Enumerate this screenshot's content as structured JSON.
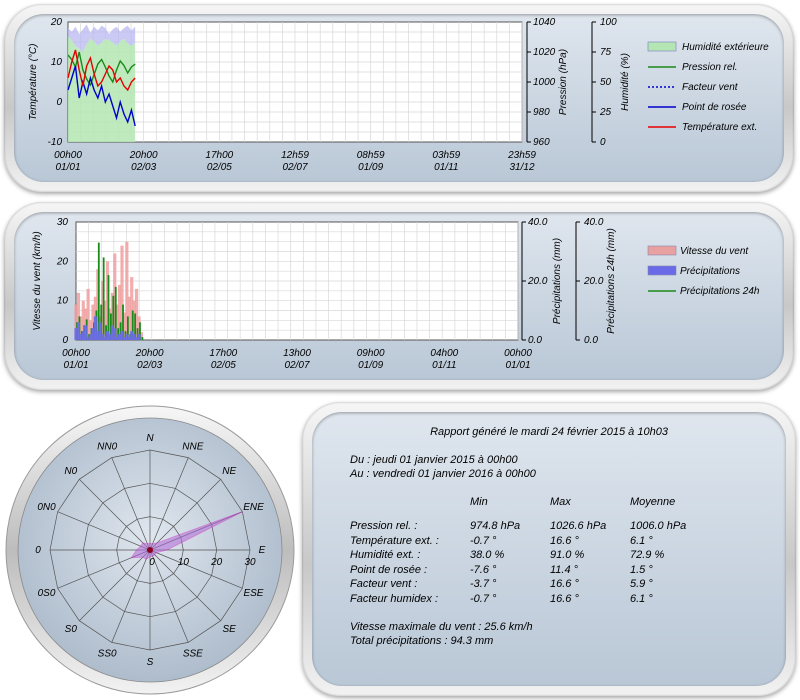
{
  "chart_data": [
    {
      "type": "line",
      "ylabel_left": "Température (°C)",
      "ylim_left": [
        -10,
        20
      ],
      "yticks_left": [
        "20",
        "10",
        "0",
        "-10"
      ],
      "ylabel_mid": "Pression (hPa)",
      "ylim_mid": [
        960,
        1040
      ],
      "yticks_mid": [
        "1040",
        "1020",
        "1000",
        "980",
        "960"
      ],
      "ylabel_right": "Humidité (%)",
      "ylim_right": [
        0,
        100
      ],
      "yticks_right": [
        "100",
        "75",
        "50",
        "25",
        "0"
      ],
      "xticks": [
        {
          "time": "00h00",
          "date": "01/01"
        },
        {
          "time": "20h00",
          "date": "02/03"
        },
        {
          "time": "17h00",
          "date": "02/05"
        },
        {
          "time": "12h59",
          "date": "02/07"
        },
        {
          "time": "08h59",
          "date": "01/09"
        },
        {
          "time": "03h59",
          "date": "01/11"
        },
        {
          "time": "23h59",
          "date": "31/12"
        }
      ],
      "grid": true,
      "legend_position": "right",
      "legend": [
        {
          "name": "Humidité extérieure",
          "style": "area",
          "color": "#b3e6b3"
        },
        {
          "name": "Pression rel.",
          "style": "line",
          "color": "#1a8a1a"
        },
        {
          "name": "Facteur vent",
          "style": "dotted",
          "color": "#0000cc"
        },
        {
          "name": "Point de rosée",
          "style": "line",
          "color": "#0000cc"
        },
        {
          "name": "Température ext.",
          "style": "line",
          "color": "#e60000"
        }
      ],
      "series": [
        {
          "name": "Humidité extérieure",
          "axis": "right",
          "x_days": [
            0,
            3,
            6,
            9,
            12,
            15,
            18,
            21,
            24,
            27,
            30,
            33,
            36,
            39,
            42,
            45,
            48,
            51,
            54
          ],
          "values": [
            88,
            85,
            80,
            78,
            75,
            82,
            86,
            84,
            80,
            83,
            86,
            85,
            83,
            80,
            84,
            86,
            82,
            80,
            83
          ]
        },
        {
          "name": "Humidité extérieure (haut)",
          "axis": "right",
          "x_days": [
            0,
            3,
            6,
            9,
            12,
            15,
            18,
            21,
            24,
            27,
            30,
            33,
            36,
            39,
            42,
            45,
            48,
            51,
            54
          ],
          "values": [
            95,
            92,
            96,
            90,
            94,
            98,
            91,
            96,
            93,
            97,
            95,
            90,
            94,
            96,
            92,
            95,
            97,
            93,
            96
          ]
        },
        {
          "name": "Pression rel.",
          "axis": "mid",
          "x_days": [
            0,
            3,
            6,
            9,
            12,
            15,
            18,
            21,
            24,
            27,
            30,
            33,
            36,
            39,
            42,
            45,
            48,
            51,
            54
          ],
          "values": [
            1018,
            1015,
            1010,
            1020,
            1008,
            1002,
            998,
            1005,
            1012,
            1015,
            1010,
            1004,
            1000,
            1008,
            1014,
            1011,
            1006,
            1010,
            1012
          ]
        },
        {
          "name": "Point de rosée",
          "axis": "left",
          "x_days": [
            0,
            3,
            6,
            9,
            12,
            15,
            18,
            21,
            24,
            27,
            30,
            33,
            36,
            39,
            42,
            45,
            48,
            51,
            54
          ],
          "values": [
            3,
            6,
            9,
            1,
            5,
            2,
            6,
            3,
            1,
            4,
            0,
            2,
            -1,
            -4,
            0,
            -3,
            -5,
            -2,
            -6
          ]
        },
        {
          "name": "Température ext.",
          "axis": "left",
          "x_days": [
            0,
            3,
            6,
            9,
            12,
            15,
            18,
            21,
            24,
            27,
            30,
            33,
            36,
            39,
            42,
            45,
            48,
            51,
            54
          ],
          "values": [
            6,
            10,
            13,
            8,
            4,
            9,
            11,
            7,
            4,
            5,
            7,
            9,
            8,
            5,
            6,
            4,
            3,
            5,
            6
          ]
        }
      ]
    },
    {
      "type": "bar",
      "ylabel_left": "Vitesse du vent (km/h)",
      "ylim_left": [
        0,
        30
      ],
      "yticks_left": [
        "30",
        "20",
        "10",
        "0"
      ],
      "ylabel_mid": "Précipitations (mm)",
      "ylim_mid": [
        0,
        40
      ],
      "yticks_mid": [
        "40.0",
        "20.0",
        "0.0"
      ],
      "ylabel_right": "Précipitations 24h (mm)",
      "ylim_right": [
        0,
        40
      ],
      "yticks_right": [
        "40.0",
        "20.0",
        "0.0"
      ],
      "xticks": [
        {
          "time": "00h00",
          "date": "01/01"
        },
        {
          "time": "20h00",
          "date": "02/03"
        },
        {
          "time": "17h00",
          "date": "02/05"
        },
        {
          "time": "13h00",
          "date": "02/07"
        },
        {
          "time": "09h00",
          "date": "01/09"
        },
        {
          "time": "04h00",
          "date": "01/11"
        },
        {
          "time": "00h00",
          "date": "01/01"
        }
      ],
      "grid": true,
      "legend_position": "right",
      "legend": [
        {
          "name": "Vitesse du vent",
          "style": "area",
          "color": "#e8a0a0"
        },
        {
          "name": "Précipitations",
          "style": "area",
          "color": "#6a6ae8"
        },
        {
          "name": "Précipitations 24h",
          "style": "line",
          "color": "#1a8a1a"
        }
      ],
      "series": [
        {
          "name": "Vitesse du vent",
          "axis": "left",
          "x_days": [
            0,
            2,
            4,
            6,
            8,
            10,
            12,
            14,
            16,
            18,
            20,
            22,
            24,
            26,
            28,
            30,
            32,
            34,
            36,
            38,
            40,
            42,
            44,
            46,
            48,
            50,
            52,
            54
          ],
          "values": [
            9,
            12,
            6,
            10,
            8,
            13,
            5,
            9,
            11,
            18,
            6,
            15,
            10,
            20,
            8,
            12,
            22,
            9,
            14,
            24,
            7,
            25,
            11,
            16,
            10,
            13,
            6,
            2
          ]
        },
        {
          "name": "Précipitations",
          "axis": "mid",
          "x_days": [
            0,
            2,
            4,
            6,
            8,
            10,
            12,
            14,
            16,
            18,
            20,
            22,
            24,
            26,
            28,
            30,
            32,
            34,
            36,
            38,
            40,
            42,
            44,
            46,
            48,
            50,
            52,
            54
          ],
          "values": [
            4,
            6,
            2,
            3,
            5,
            1,
            2,
            4,
            8,
            3,
            6,
            2,
            1,
            3,
            2,
            5,
            4,
            1,
            2,
            3,
            1,
            2,
            1,
            3,
            2,
            1,
            2,
            0
          ]
        },
        {
          "name": "Précipitations 24h",
          "axis": "right",
          "x_days": [
            0,
            2,
            4,
            6,
            8,
            10,
            12,
            14,
            16,
            18,
            20,
            22,
            24,
            26,
            28,
            30,
            32,
            34,
            36,
            38,
            40,
            42,
            44,
            46,
            48,
            50,
            52,
            54
          ],
          "values": [
            6,
            8,
            3,
            5,
            7,
            2,
            4,
            6,
            10,
            33,
            12,
            28,
            5,
            22,
            9,
            15,
            18,
            4,
            6,
            12,
            3,
            8,
            2,
            10,
            9,
            4,
            6,
            1
          ]
        }
      ]
    },
    {
      "type": "radar",
      "directions": [
        "N",
        "NNE",
        "NE",
        "ENE",
        "E",
        "ESE",
        "SE",
        "SSE",
        "S",
        "SS0",
        "S0",
        "0S0",
        "0",
        "0N0",
        "N0",
        "NN0"
      ],
      "radial_ticks": [
        "0",
        "10",
        "20",
        "30"
      ],
      "rlim": [
        0,
        30
      ],
      "series": [
        {
          "name": "Vitesse du vent",
          "values": [
            2,
            2,
            3,
            30,
            5,
            2,
            2,
            2,
            2,
            3,
            3,
            6,
            4,
            3,
            3,
            2
          ],
          "color": "#c83cc8"
        }
      ]
    }
  ],
  "report": {
    "title": "Rapport généré le mardi 24 février 2015 à 10h03",
    "period_from": "Du : jeudi 01 janvier 2015 à 00h00",
    "period_to": "Au : vendredi 01 janvier 2016 à 00h00",
    "headers": [
      "Min",
      "Max",
      "Moyenne"
    ],
    "rows": [
      {
        "label": "Pression rel. :",
        "min": "974.8 hPa",
        "max": "1026.6 hPa",
        "avg": "1006.0 hPa"
      },
      {
        "label": "Température ext. :",
        "min": "-0.7 °",
        "max": "16.6 °",
        "avg": "6.1 °"
      },
      {
        "label": "Humidité ext. :",
        "min": "38.0 %",
        "max": "91.0 %",
        "avg": "72.9 %"
      },
      {
        "label": "Point de rosée :",
        "min": "-7.6 °",
        "max": "11.4 °",
        "avg": "1.5 °"
      },
      {
        "label": "Facteur vent :",
        "min": "-3.7 °",
        "max": "16.6 °",
        "avg": "5.9 °"
      },
      {
        "label": "Facteur humidex :",
        "min": "-0.7 °",
        "max": "16.6 °",
        "avg": "6.1 °"
      }
    ],
    "max_wind": "Vitesse maximale du vent : 25.6 km/h",
    "total_rain": "Total précipitations : 94.3 mm"
  }
}
